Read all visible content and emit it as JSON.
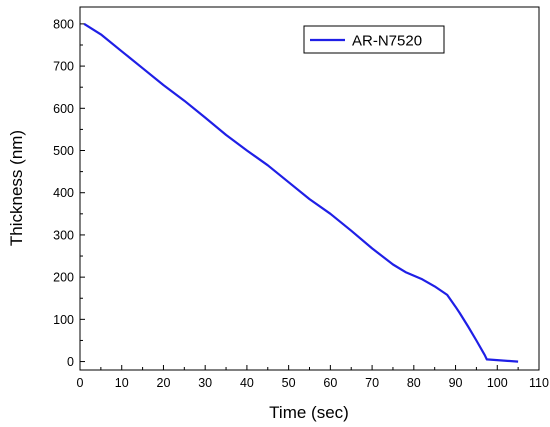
{
  "chart_data": {
    "type": "line",
    "title": "",
    "xlabel": "Time (sec)",
    "ylabel": "Thickness (nm)",
    "xlim": [
      0,
      110
    ],
    "ylim": [
      -20,
      840
    ],
    "xticks": [
      0,
      10,
      20,
      30,
      40,
      50,
      60,
      70,
      80,
      90,
      100,
      110
    ],
    "yticks": [
      0,
      100,
      200,
      300,
      400,
      500,
      600,
      700,
      800
    ],
    "grid": false,
    "legend_position": "top-right",
    "series": [
      {
        "name": "AR-N7520",
        "color": "#1f1fe6",
        "x": [
          1,
          5,
          10,
          15,
          20,
          25,
          30,
          35,
          40,
          45,
          50,
          55,
          60,
          65,
          70,
          75,
          78,
          82,
          85,
          88,
          90,
          91,
          93,
          95,
          97,
          97.5,
          105
        ],
        "y": [
          800,
          775,
          735,
          695,
          655,
          618,
          578,
          537,
          500,
          465,
          425,
          385,
          350,
          310,
          268,
          230,
          212,
          195,
          178,
          158,
          130,
          115,
          83,
          50,
          15,
          5,
          0
        ]
      }
    ]
  }
}
